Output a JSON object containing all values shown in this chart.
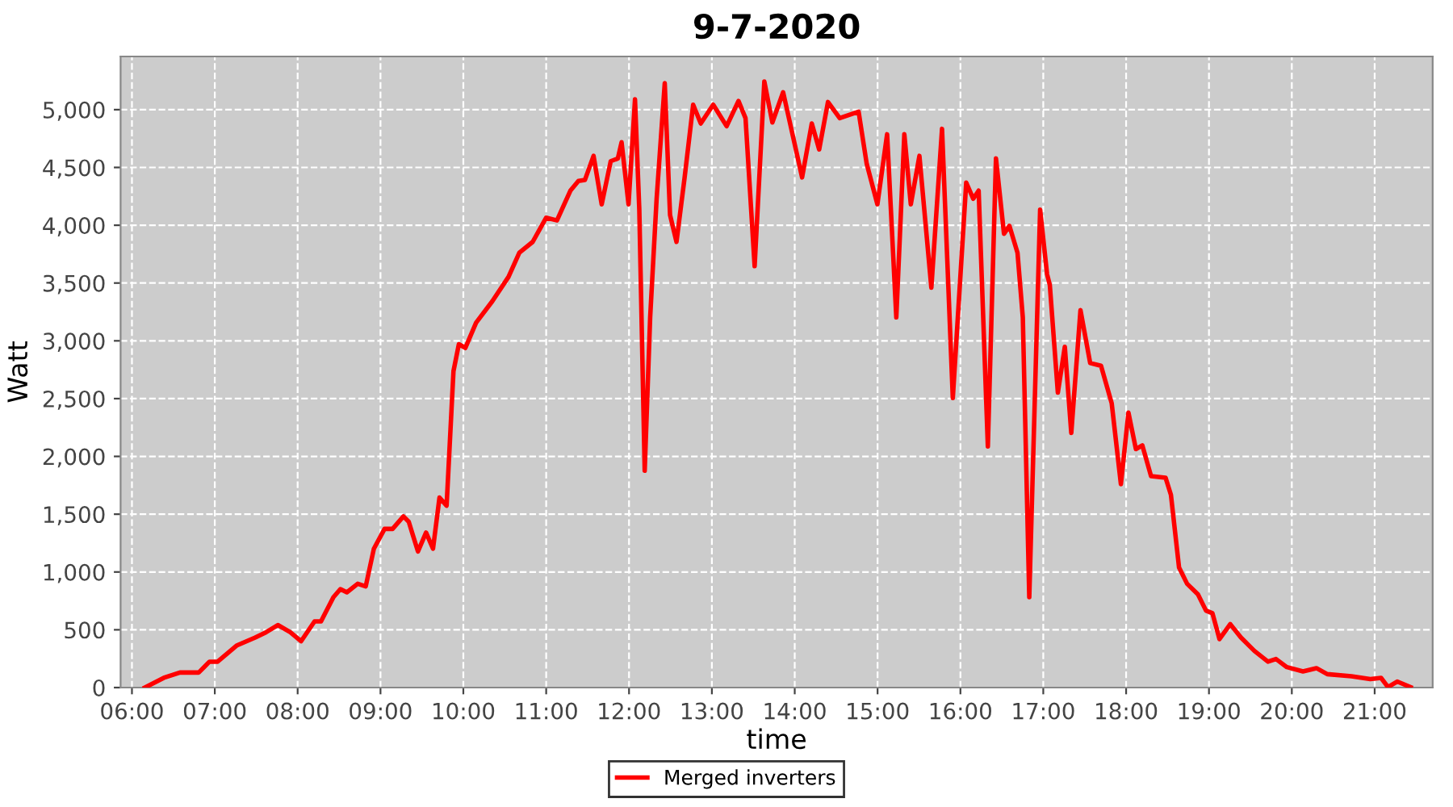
{
  "chart_data": {
    "type": "line",
    "title": "9-7-2020",
    "xlabel": "time",
    "ylabel": "Watt",
    "series": [
      {
        "name": "Merged inverters",
        "color": "#ff0000",
        "x": [
          6.156,
          6.384,
          6.579,
          6.806,
          6.936,
          7.034,
          7.262,
          7.488,
          7.619,
          7.761,
          7.911,
          8.042,
          8.204,
          8.282,
          8.432,
          8.516,
          8.594,
          8.725,
          8.822,
          8.92,
          9.049,
          9.146,
          9.277,
          9.341,
          9.452,
          9.55,
          9.634,
          9.712,
          9.798,
          9.881,
          9.946,
          10.024,
          10.154,
          10.35,
          10.545,
          10.676,
          10.837,
          10.999,
          11.13,
          11.292,
          11.389,
          11.467,
          11.572,
          11.67,
          11.779,
          11.865,
          11.91,
          11.994,
          12.072,
          12.124,
          12.189,
          12.255,
          12.333,
          12.431,
          12.495,
          12.573,
          12.671,
          12.774,
          12.866,
          13.016,
          13.178,
          13.321,
          13.406,
          13.516,
          13.633,
          13.73,
          13.86,
          14.089,
          14.206,
          14.295,
          14.401,
          14.543,
          14.771,
          14.869,
          14.998,
          15.115,
          15.226,
          15.323,
          15.401,
          15.505,
          15.649,
          15.778,
          15.908,
          16.07,
          16.155,
          16.22,
          16.331,
          16.429,
          16.526,
          16.591,
          16.689,
          16.753,
          16.831,
          16.962,
          17.046,
          17.079,
          17.176,
          17.26,
          17.338,
          17.449,
          17.566,
          17.697,
          17.826,
          17.937,
          18.028,
          18.118,
          18.196,
          18.301,
          18.476,
          18.541,
          18.639,
          18.736,
          18.867,
          18.964,
          19.042,
          19.127,
          19.257,
          19.386,
          19.549,
          19.712,
          19.809,
          19.94,
          20.135,
          20.297,
          20.428,
          20.72,
          20.947,
          21.077,
          21.161,
          21.272,
          21.434
        ],
        "values": [
          0,
          84,
          130,
          130,
          224,
          224,
          363,
          433,
          479,
          541,
          479,
          401,
          573,
          573,
          782,
          852,
          824,
          898,
          876,
          1201,
          1373,
          1373,
          1481,
          1435,
          1178,
          1341,
          1201,
          1644,
          1574,
          2738,
          2971,
          2938,
          3157,
          3343,
          3553,
          3762,
          3856,
          4065,
          4042,
          4299,
          4383,
          4391,
          4600,
          4181,
          4554,
          4578,
          4718,
          4181,
          5089,
          4135,
          1876,
          3203,
          4229,
          5229,
          4089,
          3856,
          4414,
          5043,
          4880,
          5043,
          4857,
          5075,
          4927,
          3646,
          5243,
          4889,
          5151,
          4414,
          4880,
          4656,
          5066,
          4927,
          4983,
          4531,
          4181,
          4787,
          3203,
          4787,
          4181,
          4600,
          3460,
          4834,
          2505,
          4369,
          4229,
          4299,
          2086,
          4578,
          3926,
          3995,
          3762,
          3203,
          782,
          4135,
          3576,
          3483,
          2552,
          2948,
          2203,
          3265,
          2808,
          2784,
          2459,
          1760,
          2379,
          2063,
          2095,
          1830,
          1816,
          1667,
          1038,
          898,
          806,
          666,
          643,
          419,
          549,
          433,
          317,
          224,
          247,
          177,
          140,
          168,
          116,
          98,
          74,
          84,
          4,
          52,
          4
        ]
      }
    ],
    "xlim": [
      5.863,
      21.7
    ],
    "xticks": [
      {
        "value": 6,
        "label": "06:00"
      },
      {
        "value": 7,
        "label": "07:00"
      },
      {
        "value": 8,
        "label": "08:00"
      },
      {
        "value": 9,
        "label": "09:00"
      },
      {
        "value": 10,
        "label": "10:00"
      },
      {
        "value": 11,
        "label": "11:00"
      },
      {
        "value": 12,
        "label": "12:00"
      },
      {
        "value": 13,
        "label": "13:00"
      },
      {
        "value": 14,
        "label": "14:00"
      },
      {
        "value": 15,
        "label": "15:00"
      },
      {
        "value": 16,
        "label": "16:00"
      },
      {
        "value": 17,
        "label": "17:00"
      },
      {
        "value": 18,
        "label": "18:00"
      },
      {
        "value": 19,
        "label": "19:00"
      },
      {
        "value": 20,
        "label": "20:00"
      },
      {
        "value": 21,
        "label": "21:00"
      }
    ],
    "ylim": [
      0,
      5460
    ],
    "yticks": [
      0,
      500,
      {
        "value": 1000,
        "label": "1,000"
      },
      {
        "value": 1500,
        "label": "1,500"
      },
      {
        "value": 2000,
        "label": "2,000"
      },
      {
        "value": 2500,
        "label": "2,500"
      },
      {
        "value": 3000,
        "label": "3,000"
      },
      {
        "value": 3500,
        "label": "3,500"
      },
      {
        "value": 4000,
        "label": "4,000"
      },
      {
        "value": 4500,
        "label": "4,500"
      },
      {
        "value": 5000,
        "label": "5,000"
      }
    ],
    "grid": true,
    "legend": "bottom",
    "marker": "none",
    "line_style": "solid"
  }
}
